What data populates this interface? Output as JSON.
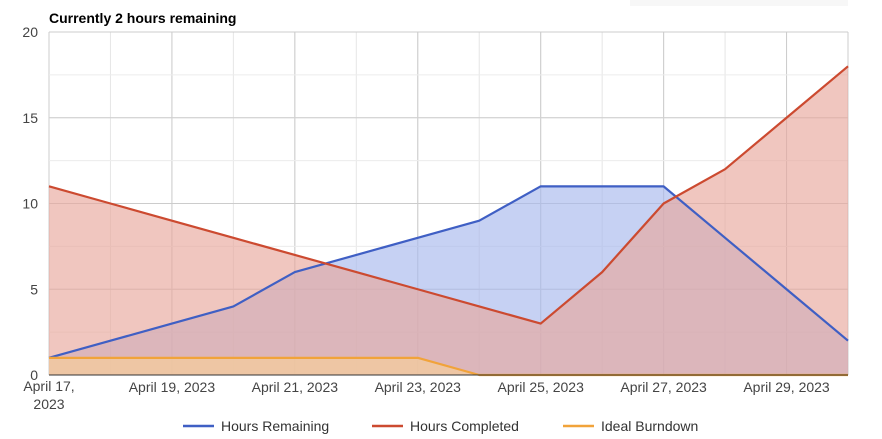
{
  "chart_data": {
    "type": "area",
    "title": "Currently 2 hours remaining",
    "xlabel": "",
    "ylabel": "",
    "x": [
      "2023-04-17",
      "2023-04-18",
      "2023-04-19",
      "2023-04-20",
      "2023-04-21",
      "2023-04-22",
      "2023-04-23",
      "2023-04-24",
      "2023-04-25",
      "2023-04-26",
      "2023-04-27",
      "2023-04-28",
      "2023-04-29",
      "2023-04-30"
    ],
    "x_tick_labels": [
      "April 17,\n2023",
      "April 19, 2023",
      "April 21, 2023",
      "April 23, 2023",
      "April 25, 2023",
      "April 27, 2023",
      "April 29, 2023"
    ],
    "x_tick_dates": [
      "2023-04-17",
      "2023-04-19",
      "2023-04-21",
      "2023-04-23",
      "2023-04-25",
      "2023-04-27",
      "2023-04-29"
    ],
    "ylim": [
      0,
      20
    ],
    "y_ticks": [
      0,
      5,
      10,
      15,
      20
    ],
    "grid": true,
    "legend_position": "bottom",
    "series": [
      {
        "name": "Hours Remaining",
        "color": "#3f5fc4",
        "fill": "#a8b8ec",
        "values": [
          1,
          2,
          3,
          4,
          6,
          7,
          8,
          9,
          11,
          11,
          11,
          8,
          5,
          2
        ]
      },
      {
        "name": "Hours Completed",
        "color": "#cc4a30",
        "fill": "#e8a79c",
        "values": [
          11,
          10,
          9,
          8,
          7,
          6,
          5,
          4,
          3,
          6,
          10,
          12,
          15,
          18
        ]
      },
      {
        "name": "Ideal Burndown",
        "color": "#f1a33a",
        "fill": "#f7cf98",
        "values": [
          1,
          1,
          1,
          1,
          1,
          1,
          1,
          0,
          0,
          0,
          0,
          0,
          0,
          0
        ]
      }
    ]
  }
}
